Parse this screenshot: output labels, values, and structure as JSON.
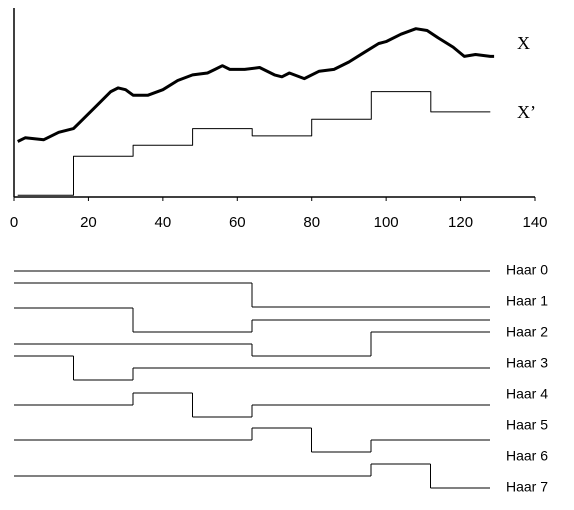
{
  "chart_data": [
    {
      "type": "line",
      "xlim": [
        0,
        140
      ],
      "xticks": [
        0,
        20,
        40,
        60,
        80,
        100,
        120,
        140
      ],
      "ylim": [
        0,
        100
      ],
      "series": [
        {
          "name": "X",
          "color": "#000000",
          "line_width": 3,
          "x": [
            1,
            3,
            8,
            12,
            16,
            18,
            22,
            26,
            28,
            30,
            32,
            36,
            40,
            44,
            48,
            52,
            54,
            56,
            58,
            62,
            66,
            70,
            72,
            74,
            78,
            82,
            86,
            90,
            94,
            98,
            100,
            104,
            108,
            111,
            114,
            118,
            121,
            124,
            128,
            129
          ],
          "values": [
            30,
            32,
            31,
            35,
            37,
            41,
            49,
            57,
            59,
            58,
            55,
            55,
            58,
            63,
            66,
            67,
            69,
            71,
            69,
            69,
            70,
            66,
            65,
            67,
            64,
            68,
            69,
            73,
            78,
            83,
            84,
            88,
            91,
            90,
            86,
            81,
            76,
            77,
            76,
            76
          ]
        },
        {
          "name": "X’",
          "color": "#000000",
          "line_width": 1,
          "x": [
            1,
            16,
            16,
            32,
            32,
            48,
            48,
            64,
            64,
            80,
            80,
            96,
            96,
            112,
            112,
            128
          ],
          "values": [
            1,
            1,
            22,
            22,
            28,
            28,
            37,
            37,
            33,
            33,
            42,
            42,
            57,
            57,
            46,
            46
          ]
        }
      ]
    },
    {
      "type": "step",
      "x_edges": [
        0,
        16,
        32,
        48,
        64,
        80,
        96,
        112,
        128
      ],
      "series": [
        {
          "name": "Haar 0",
          "levels": [
            0,
            0,
            0,
            0,
            0,
            0,
            0,
            0
          ]
        },
        {
          "name": "Haar 1",
          "levels": [
            1,
            1,
            1,
            1,
            -1,
            -1,
            -1,
            -1
          ]
        },
        {
          "name": "Haar 2",
          "levels": [
            1,
            1,
            -1,
            -1,
            0,
            0,
            0,
            0
          ]
        },
        {
          "name": "Haar 3",
          "levels": [
            0,
            0,
            0,
            0,
            -1,
            -1,
            1,
            1
          ]
        },
        {
          "name": "Haar 4",
          "levels": [
            1,
            -1,
            0,
            0,
            0,
            0,
            0,
            0
          ]
        },
        {
          "name": "Haar 5",
          "levels": [
            0,
            0,
            1,
            -1,
            0,
            0,
            0,
            0
          ]
        },
        {
          "name": "Haar 6",
          "levels": [
            0,
            0,
            0,
            0,
            1,
            -1,
            0,
            0
          ]
        },
        {
          "name": "Haar 7",
          "levels": [
            0,
            0,
            0,
            0,
            0,
            0,
            1,
            -1
          ]
        }
      ]
    }
  ]
}
